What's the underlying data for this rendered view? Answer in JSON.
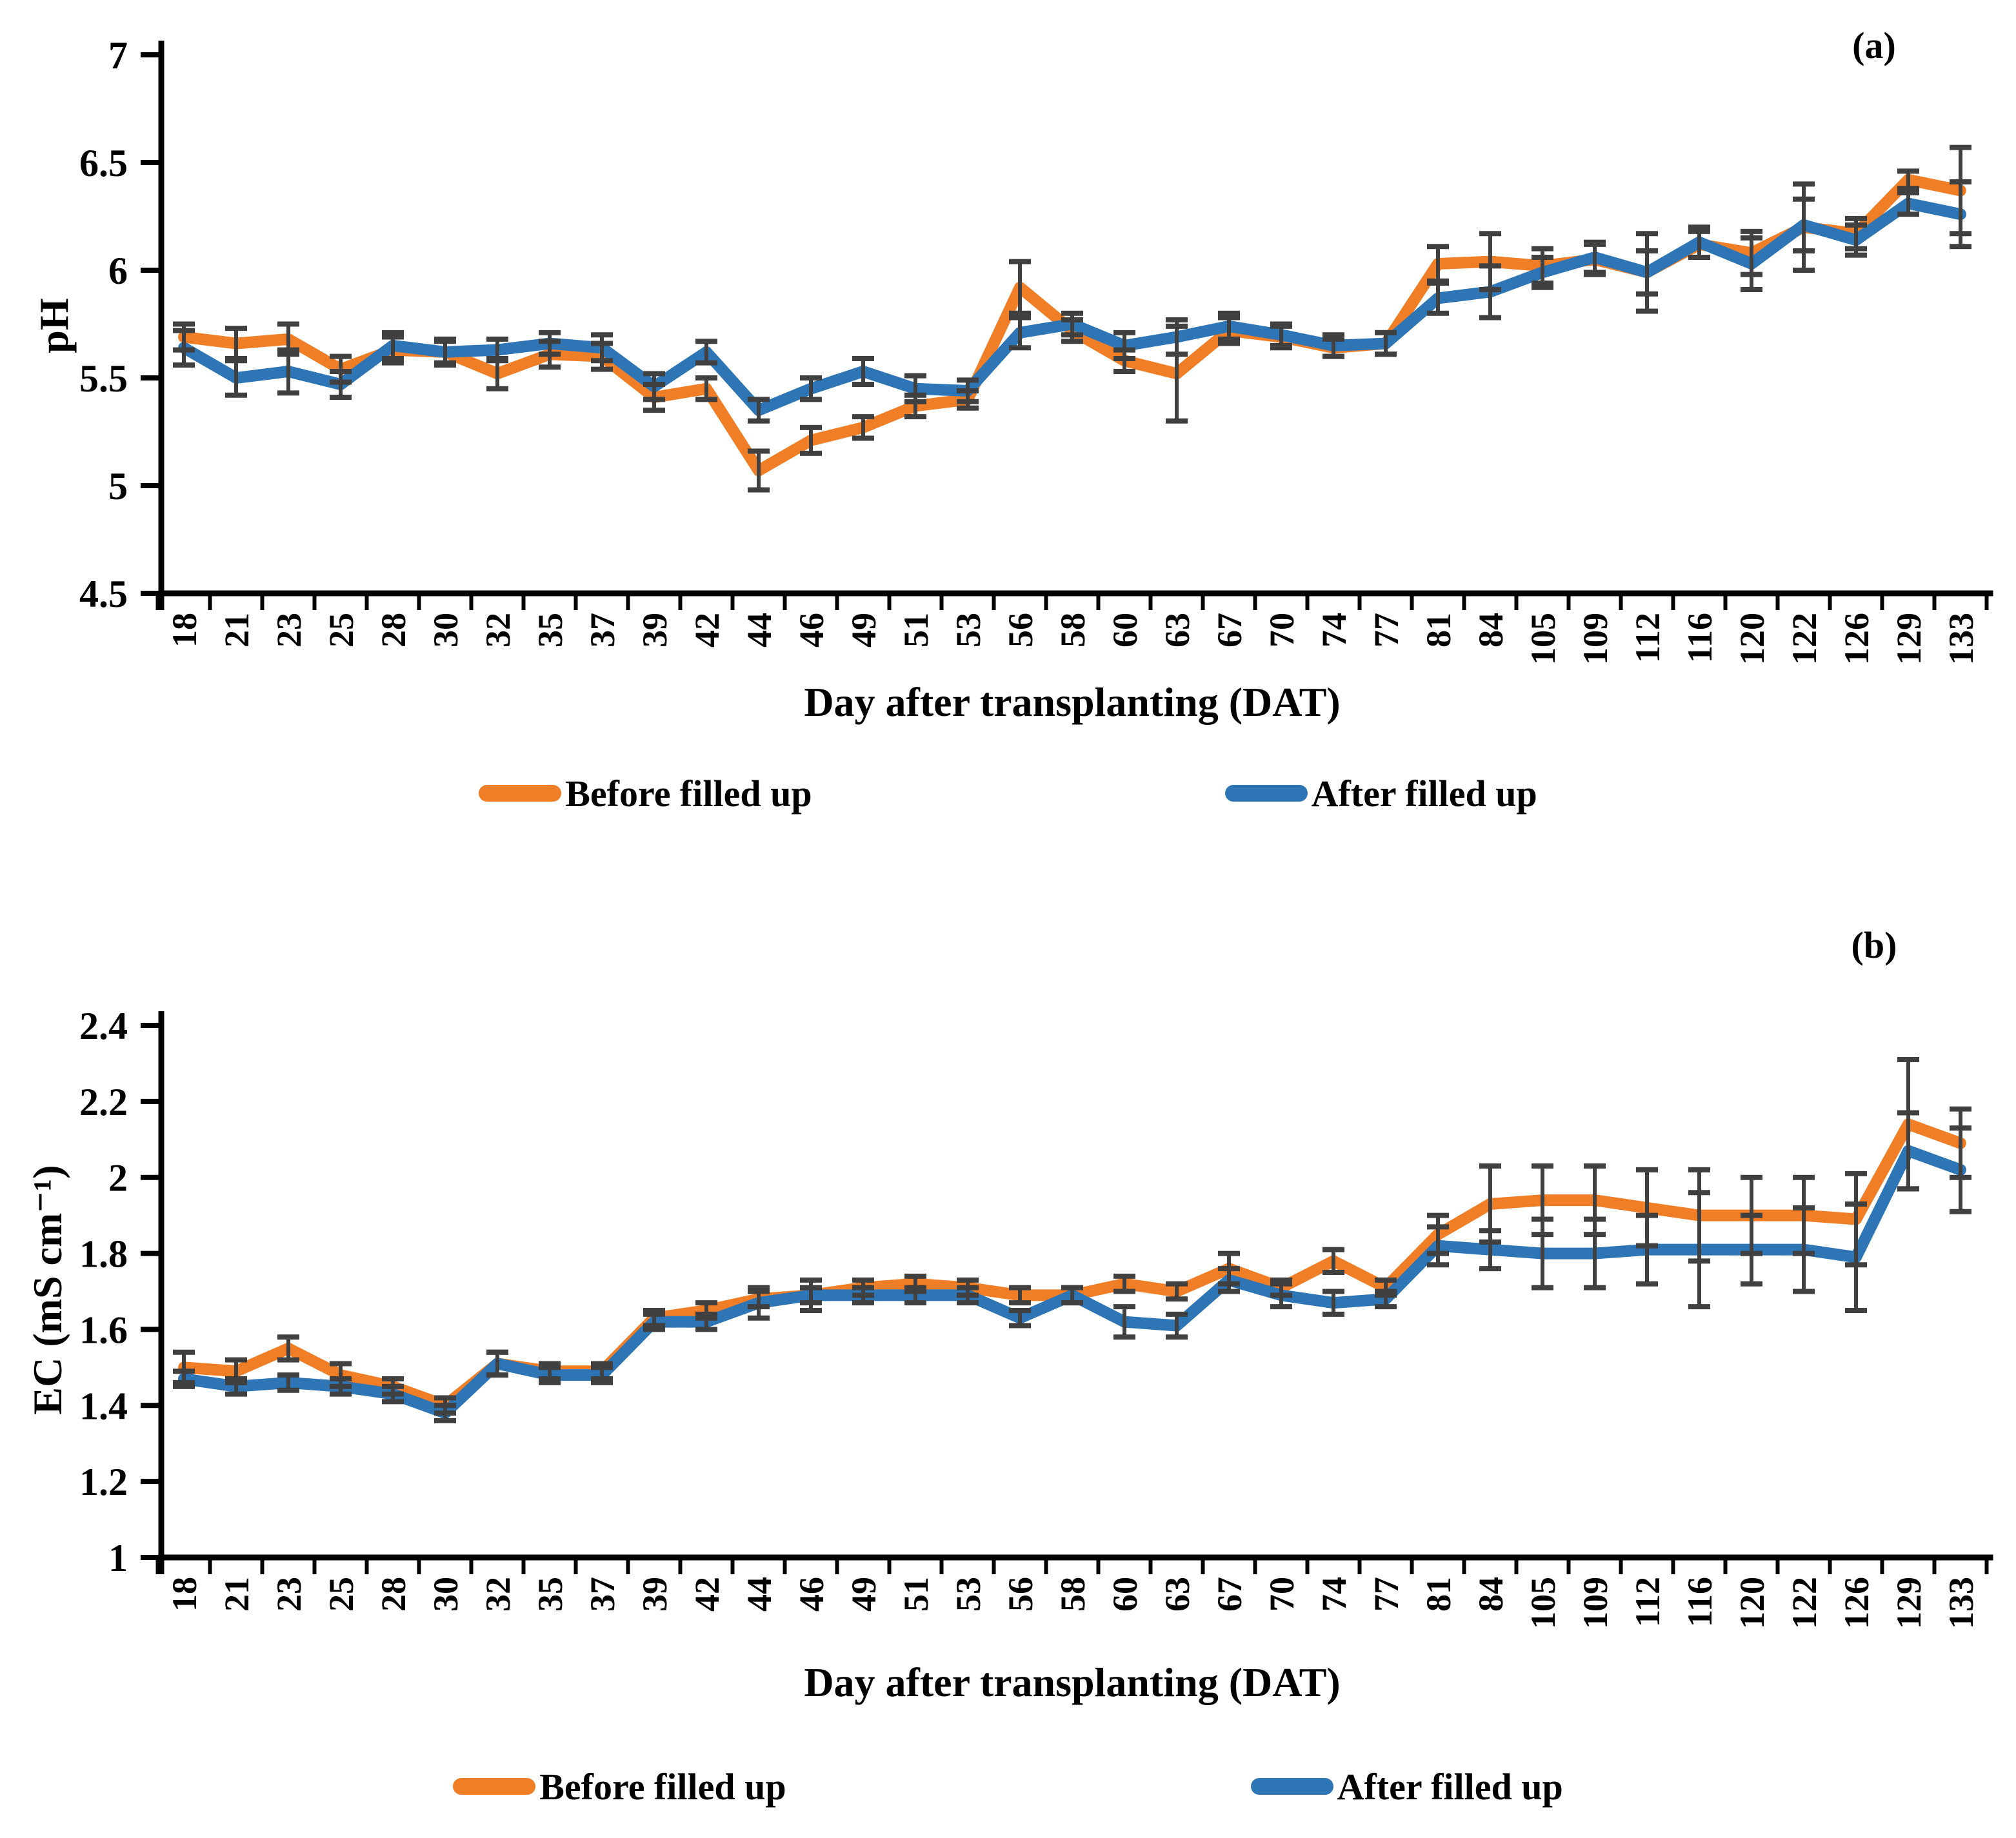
{
  "chart_data": [
    {
      "type": "line",
      "panel": "(a)",
      "title": "",
      "xlabel": "Day after transplanting (DAT)",
      "ylabel": "pH",
      "ylim": [
        4.5,
        7
      ],
      "yticks": [
        4.5,
        5,
        5.5,
        6,
        6.5,
        7
      ],
      "ytick_labels": [
        "4.5",
        "5",
        "5.5",
        "6",
        "6.5",
        "7"
      ],
      "grid": false,
      "legend_position": "bottom",
      "error_bar_color": "#404040",
      "categories": [
        "18",
        "21",
        "23",
        "25",
        "28",
        "30",
        "32",
        "35",
        "37",
        "39",
        "42",
        "44",
        "46",
        "49",
        "51",
        "53",
        "56",
        "58",
        "60",
        "63",
        "67",
        "70",
        "74",
        "77",
        "81",
        "84",
        "105",
        "109",
        "112",
        "116",
        "120",
        "122",
        "126",
        "129",
        "133"
      ],
      "series": [
        {
          "name": "Before filled up",
          "color": "#F07E26",
          "values": [
            5.69,
            5.66,
            5.68,
            5.54,
            5.63,
            5.62,
            5.52,
            5.61,
            5.6,
            5.41,
            5.45,
            5.07,
            5.21,
            5.27,
            5.37,
            5.4,
            5.92,
            5.72,
            5.58,
            5.52,
            5.72,
            5.69,
            5.64,
            5.66,
            6.03,
            6.04,
            6.02,
            6.05,
            5.99,
            6.12,
            6.08,
            6.2,
            6.17,
            6.42,
            6.37
          ],
          "errors": [
            0.06,
            0.07,
            0.07,
            0.06,
            0.06,
            0.05,
            0.07,
            0.06,
            0.06,
            0.06,
            0.05,
            0.09,
            0.06,
            0.05,
            0.05,
            0.04,
            0.12,
            0.05,
            0.05,
            0.22,
            0.06,
            0.05,
            0.04,
            0.05,
            0.08,
            0.13,
            0.08,
            0.07,
            0.1,
            0.06,
            0.1,
            0.2,
            0.07,
            0.04,
            0.2
          ]
        },
        {
          "name": "After filled up",
          "color": "#2E75B6",
          "values": [
            5.64,
            5.5,
            5.53,
            5.47,
            5.65,
            5.62,
            5.63,
            5.66,
            5.64,
            5.46,
            5.62,
            5.35,
            5.45,
            5.53,
            5.45,
            5.44,
            5.71,
            5.75,
            5.65,
            5.69,
            5.74,
            5.7,
            5.65,
            5.66,
            5.87,
            5.9,
            5.99,
            6.06,
            5.99,
            6.13,
            6.03,
            6.21,
            6.14,
            6.31,
            6.26
          ],
          "errors": [
            0.08,
            0.08,
            0.1,
            0.06,
            0.06,
            0.06,
            0.05,
            0.05,
            0.06,
            0.06,
            0.05,
            0.05,
            0.05,
            0.06,
            0.06,
            0.05,
            0.07,
            0.05,
            0.06,
            0.08,
            0.06,
            0.05,
            0.05,
            0.05,
            0.07,
            0.12,
            0.07,
            0.07,
            0.18,
            0.07,
            0.12,
            0.12,
            0.07,
            0.05,
            0.15
          ]
        }
      ]
    },
    {
      "type": "line",
      "panel": "(b)",
      "title": "",
      "xlabel": "Day after transplanting (DAT)",
      "ylabel": "EC (mS cm⁻¹)",
      "ylim": [
        1,
        2.4
      ],
      "yticks": [
        1,
        1.2,
        1.4,
        1.6,
        1.8,
        2,
        2.2,
        2.4
      ],
      "ytick_labels": [
        "1",
        "1.2",
        "1.4",
        "1.6",
        "1.8",
        "2",
        "2.2",
        "2.4"
      ],
      "grid": false,
      "legend_position": "bottom",
      "error_bar_color": "#404040",
      "categories": [
        "18",
        "21",
        "23",
        "25",
        "28",
        "30",
        "32",
        "35",
        "37",
        "39",
        "42",
        "44",
        "46",
        "49",
        "51",
        "53",
        "56",
        "58",
        "60",
        "63",
        "67",
        "70",
        "74",
        "77",
        "81",
        "84",
        "105",
        "109",
        "112",
        "116",
        "120",
        "122",
        "126",
        "129",
        "133"
      ],
      "series": [
        {
          "name": "Before filled up",
          "color": "#F07E26",
          "values": [
            1.5,
            1.49,
            1.55,
            1.48,
            1.45,
            1.4,
            1.51,
            1.49,
            1.49,
            1.63,
            1.65,
            1.68,
            1.69,
            1.71,
            1.72,
            1.71,
            1.69,
            1.69,
            1.72,
            1.7,
            1.76,
            1.71,
            1.78,
            1.71,
            1.85,
            1.93,
            1.94,
            1.94,
            1.92,
            1.9,
            1.9,
            1.9,
            1.89,
            2.14,
            2.09
          ],
          "errors": [
            0.04,
            0.03,
            0.03,
            0.03,
            0.02,
            0.02,
            0.03,
            0.02,
            0.02,
            0.02,
            0.02,
            0.02,
            0.04,
            0.02,
            0.02,
            0.02,
            0.02,
            0.02,
            0.02,
            0.02,
            0.04,
            0.02,
            0.03,
            0.02,
            0.05,
            0.1,
            0.09,
            0.09,
            0.1,
            0.12,
            0.1,
            0.1,
            0.12,
            0.17,
            0.09
          ]
        },
        {
          "name": "After filled up",
          "color": "#2E75B6",
          "values": [
            1.47,
            1.45,
            1.46,
            1.45,
            1.43,
            1.38,
            1.51,
            1.48,
            1.48,
            1.62,
            1.62,
            1.67,
            1.69,
            1.69,
            1.69,
            1.69,
            1.63,
            1.69,
            1.62,
            1.61,
            1.73,
            1.69,
            1.67,
            1.68,
            1.82,
            1.81,
            1.8,
            1.8,
            1.81,
            1.81,
            1.81,
            1.81,
            1.79,
            2.07,
            2.02
          ],
          "errors": [
            0.02,
            0.02,
            0.02,
            0.02,
            0.02,
            0.02,
            0.03,
            0.02,
            0.02,
            0.02,
            0.02,
            0.04,
            0.02,
            0.02,
            0.02,
            0.02,
            0.02,
            0.02,
            0.04,
            0.03,
            0.03,
            0.03,
            0.03,
            0.02,
            0.05,
            0.05,
            0.09,
            0.09,
            0.09,
            0.15,
            0.09,
            0.11,
            0.14,
            0.1,
            0.11
          ]
        }
      ]
    }
  ]
}
